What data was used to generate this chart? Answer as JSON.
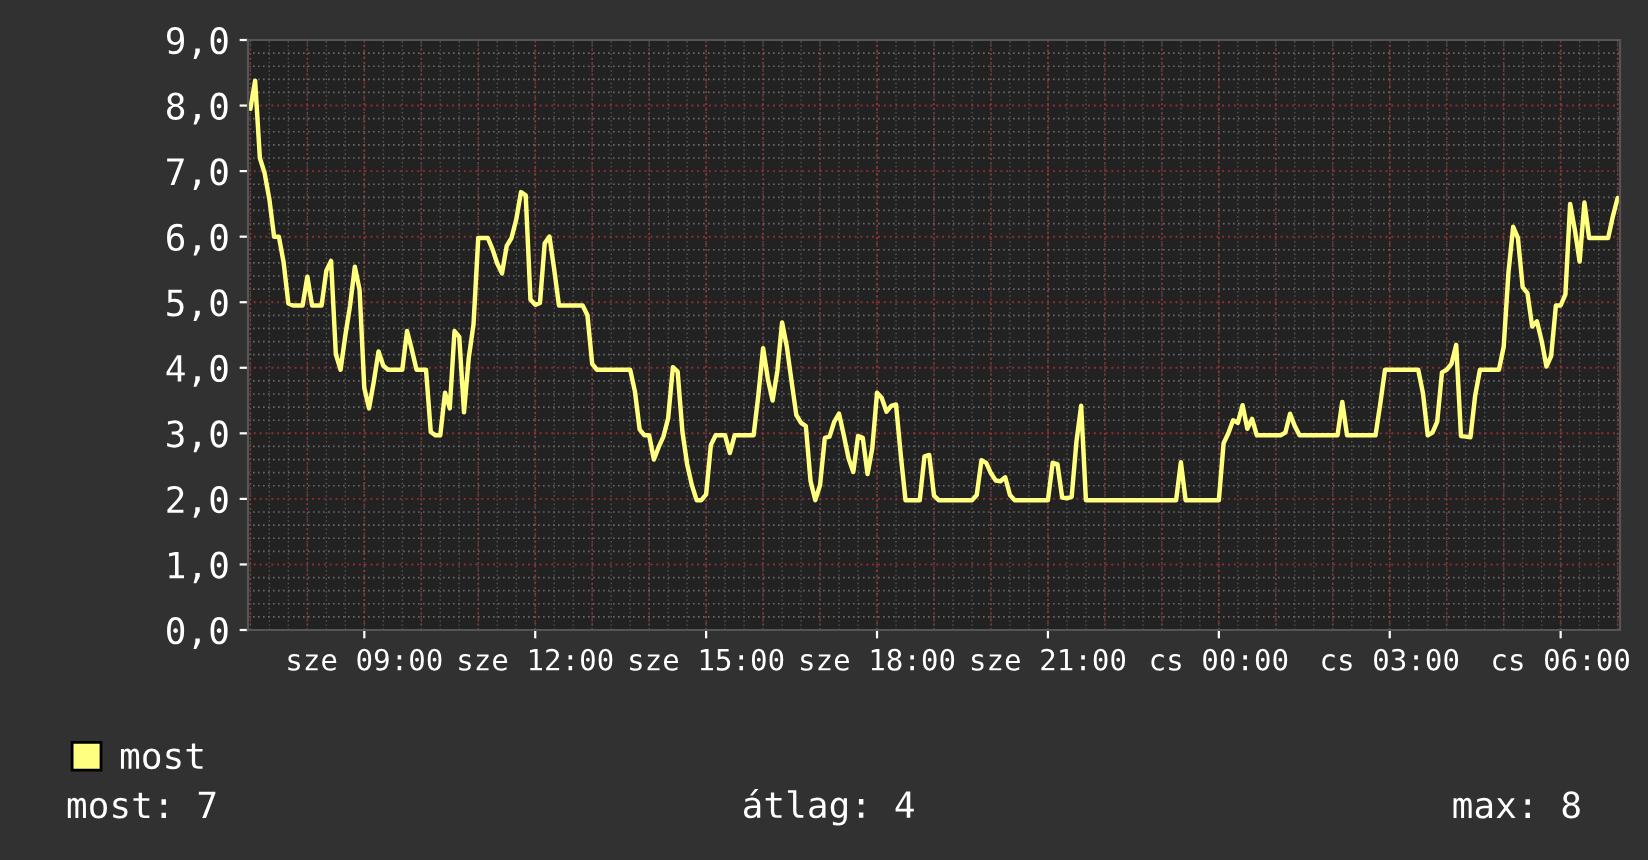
{
  "chart_data": {
    "type": "line",
    "ylim": [
      0,
      9
    ],
    "yticks": [
      {
        "value": 0,
        "label": "0,0"
      },
      {
        "value": 1,
        "label": "1,0"
      },
      {
        "value": 2,
        "label": "2,0"
      },
      {
        "value": 3,
        "label": "3,0"
      },
      {
        "value": 4,
        "label": "4,0"
      },
      {
        "value": 5,
        "label": "5,0"
      },
      {
        "value": 6,
        "label": "6,0"
      },
      {
        "value": 7,
        "label": "7,0"
      },
      {
        "value": 8,
        "label": "8,0"
      },
      {
        "value": 9,
        "label": "9,0"
      }
    ],
    "categories": [
      null,
      null,
      null,
      null,
      null,
      null,
      null,
      null,
      null,
      null,
      null,
      null,
      null,
      null,
      null,
      null,
      null,
      null,
      null,
      null,
      null,
      null,
      null,
      null,
      "sze 09:00",
      null,
      null,
      null,
      null,
      null,
      null,
      null,
      null,
      null,
      null,
      null,
      null,
      null,
      null,
      null,
      null,
      null,
      null,
      null,
      null,
      null,
      null,
      null,
      null,
      null,
      null,
      null,
      null,
      null,
      null,
      null,
      null,
      null,
      null,
      null,
      "sze 12:00",
      null,
      null,
      null,
      null,
      null,
      null,
      null,
      null,
      null,
      null,
      null,
      null,
      null,
      null,
      null,
      null,
      null,
      null,
      null,
      null,
      null,
      null,
      null,
      null,
      null,
      null,
      null,
      null,
      null,
      null,
      null,
      null,
      null,
      null,
      null,
      "sze 15:00",
      null,
      null,
      null,
      null,
      null,
      null,
      null,
      null,
      null,
      null,
      null,
      null,
      null,
      null,
      null,
      null,
      null,
      null,
      null,
      null,
      null,
      null,
      null,
      null,
      null,
      null,
      null,
      null,
      null,
      null,
      null,
      null,
      null,
      null,
      null,
      "sze 18:00",
      null,
      null,
      null,
      null,
      null,
      null,
      null,
      null,
      null,
      null,
      null,
      null,
      null,
      null,
      null,
      null,
      null,
      null,
      null,
      null,
      null,
      null,
      null,
      null,
      null,
      null,
      null,
      null,
      null,
      null,
      null,
      null,
      null,
      null,
      null,
      "sze 21:00",
      null,
      null,
      null,
      null,
      null,
      null,
      null,
      null,
      null,
      null,
      null,
      null,
      null,
      null,
      null,
      null,
      null,
      null,
      null,
      null,
      null,
      null,
      null,
      null,
      null,
      null,
      null,
      null,
      null,
      null,
      null,
      null,
      null,
      null,
      null,
      "cs 00:00",
      null,
      null,
      null,
      null,
      null,
      null,
      null,
      null,
      null,
      null,
      null,
      null,
      null,
      null,
      null,
      null,
      null,
      null,
      null,
      null,
      null,
      null,
      null,
      null,
      null,
      null,
      null,
      null,
      null,
      null,
      null,
      null,
      null,
      null,
      null,
      "cs 03:00",
      null,
      null,
      null,
      null,
      null,
      null,
      null,
      null,
      null,
      null,
      null,
      null,
      null,
      null,
      null,
      null,
      null,
      null,
      null,
      null,
      null,
      null,
      null,
      null,
      null,
      null,
      null,
      null,
      null,
      null,
      null,
      null,
      null,
      null,
      null,
      "cs 06:00",
      null,
      null,
      null,
      null,
      null,
      null,
      null,
      null,
      null,
      null,
      null,
      null
    ],
    "grid": true,
    "legend": "bottom left",
    "annotations": [
      "most: 7",
      "átlag: 4",
      "max: 8"
    ],
    "series": [
      {
        "name": "most",
        "color": "#ffff80",
        "values": [
          7.95,
          8.38,
          7.2,
          6.97,
          6.57,
          6.0,
          6.0,
          5.61,
          4.98,
          4.95,
          4.95,
          4.95,
          5.39,
          4.95,
          4.95,
          4.95,
          5.48,
          5.63,
          4.21,
          3.97,
          4.49,
          4.95,
          5.54,
          5.19,
          3.69,
          3.38,
          3.79,
          4.25,
          4.03,
          3.97,
          3.97,
          3.97,
          3.97,
          4.56,
          4.28,
          3.97,
          3.97,
          3.97,
          3.02,
          2.97,
          2.97,
          3.62,
          3.38,
          4.56,
          4.47,
          3.32,
          4.15,
          4.66,
          5.98,
          5.98,
          5.98,
          5.81,
          5.59,
          5.44,
          5.86,
          5.98,
          6.26,
          6.68,
          6.63,
          5.04,
          4.96,
          4.99,
          5.9,
          6.0,
          5.5,
          4.95,
          4.95,
          4.95,
          4.95,
          4.95,
          4.95,
          4.8,
          4.06,
          3.97,
          3.97,
          3.97,
          3.97,
          3.97,
          3.97,
          3.97,
          3.97,
          3.64,
          3.06,
          2.97,
          2.97,
          2.6,
          2.79,
          2.95,
          3.23,
          4.01,
          3.94,
          3.03,
          2.53,
          2.21,
          1.98,
          1.98,
          2.07,
          2.82,
          2.97,
          2.97,
          2.97,
          2.7,
          2.97,
          2.97,
          2.97,
          2.97,
          2.97,
          3.58,
          4.3,
          3.83,
          3.5,
          3.95,
          4.69,
          4.32,
          3.79,
          3.28,
          3.16,
          3.11,
          2.27,
          1.98,
          2.21,
          2.93,
          2.95,
          3.18,
          3.3,
          2.97,
          2.62,
          2.41,
          2.96,
          2.93,
          2.38,
          2.77,
          3.62,
          3.54,
          3.33,
          3.42,
          3.44,
          2.67,
          1.98,
          1.98,
          1.98,
          1.98,
          2.65,
          2.67,
          2.05,
          1.98,
          1.98,
          1.98,
          1.98,
          1.98,
          1.98,
          1.98,
          1.98,
          2.06,
          2.59,
          2.55,
          2.39,
          2.28,
          2.27,
          2.33,
          2.06,
          1.98,
          1.98,
          1.98,
          1.98,
          1.98,
          1.98,
          1.98,
          1.98,
          2.55,
          2.53,
          2.02,
          2.01,
          2.03,
          2.87,
          3.42,
          1.98,
          1.98,
          1.98,
          1.98,
          1.98,
          1.98,
          1.98,
          1.98,
          1.98,
          1.98,
          1.98,
          1.98,
          1.98,
          1.98,
          1.98,
          1.98,
          1.98,
          1.98,
          1.98,
          1.98,
          2.56,
          1.98,
          1.98,
          1.98,
          1.98,
          1.98,
          1.98,
          1.98,
          1.98,
          2.85,
          3.0,
          3.2,
          3.16,
          3.43,
          3.07,
          3.22,
          2.97,
          2.97,
          2.97,
          2.97,
          2.97,
          2.97,
          3.01,
          3.3,
          3.11,
          2.97,
          2.97,
          2.97,
          2.97,
          2.97,
          2.97,
          2.97,
          2.97,
          2.97,
          3.48,
          2.97,
          2.97,
          2.97,
          2.97,
          2.97,
          2.97,
          2.97,
          3.45,
          3.97,
          3.97,
          3.97,
          3.97,
          3.97,
          3.97,
          3.97,
          3.97,
          3.61,
          2.97,
          3.01,
          3.18,
          3.93,
          3.97,
          4.06,
          4.35,
          2.96,
          2.95,
          2.94,
          3.58,
          3.97,
          3.97,
          3.97,
          3.97,
          3.97,
          4.32,
          5.45,
          6.15,
          5.98,
          5.23,
          5.14,
          4.63,
          4.71,
          4.41,
          4.02,
          4.18,
          4.95,
          4.95,
          5.12,
          6.5,
          6.1,
          5.62,
          6.52,
          5.98,
          5.98,
          5.98,
          5.98,
          5.98,
          6.31,
          6.59
        ]
      }
    ]
  }
}
